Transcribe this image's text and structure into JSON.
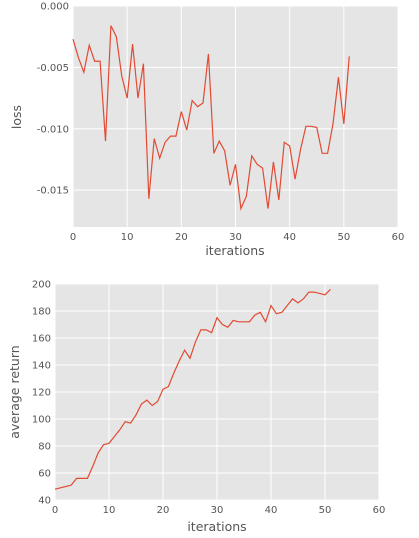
{
  "chart_data": [
    {
      "type": "line",
      "title": "",
      "xlabel": "iterations",
      "ylabel": "loss",
      "xlim": [
        0,
        60
      ],
      "ylim": [
        -0.018,
        0.0
      ],
      "xticks": [
        0,
        10,
        20,
        30,
        40,
        50,
        60
      ],
      "xtick_labels": [
        "0",
        "10",
        "20",
        "30",
        "40",
        "50",
        "60"
      ],
      "yticks": [
        0.0,
        -0.005,
        -0.01,
        -0.015
      ],
      "ytick_labels": [
        "0.000",
        "-0.005",
        "-0.010",
        "-0.015"
      ],
      "grid": true,
      "series": [
        {
          "color": "#e24a33",
          "x": [
            0,
            1,
            2,
            3,
            4,
            5,
            6,
            7,
            8,
            9,
            10,
            11,
            12,
            13,
            14,
            15,
            16,
            17,
            18,
            19,
            20,
            21,
            22,
            23,
            24,
            25,
            26,
            27,
            28,
            29,
            30,
            31,
            32,
            33,
            34,
            35,
            36,
            37,
            38,
            39,
            40,
            41,
            42,
            43,
            44,
            45,
            46,
            47,
            48,
            49,
            50,
            51
          ],
          "y": [
            -0.0027,
            -0.0042,
            -0.0054,
            -0.0032,
            -0.0045,
            -0.0045,
            -0.011,
            -0.0016,
            -0.0025,
            -0.0057,
            -0.0075,
            -0.0031,
            -0.0075,
            -0.0047,
            -0.0157,
            -0.0108,
            -0.0124,
            -0.0111,
            -0.0106,
            -0.0106,
            -0.0086,
            -0.0101,
            -0.0077,
            -0.0082,
            -0.0079,
            -0.0039,
            -0.012,
            -0.011,
            -0.0118,
            -0.0146,
            -0.0129,
            -0.0165,
            -0.0155,
            -0.0122,
            -0.0129,
            -0.0132,
            -0.0165,
            -0.0127,
            -0.0158,
            -0.0111,
            -0.0114,
            -0.0141,
            -0.0117,
            -0.0098,
            -0.0098,
            -0.0099,
            -0.012,
            -0.012,
            -0.0096,
            -0.0058,
            -0.0096,
            -0.0041
          ]
        }
      ]
    },
    {
      "type": "line",
      "title": "",
      "xlabel": "iterations",
      "ylabel": "average return",
      "xlim": [
        0,
        60
      ],
      "ylim": [
        40,
        200
      ],
      "xticks": [
        0,
        10,
        20,
        30,
        40,
        50,
        60
      ],
      "xtick_labels": [
        "0",
        "10",
        "20",
        "30",
        "40",
        "50",
        "60"
      ],
      "yticks": [
        40,
        60,
        80,
        100,
        120,
        140,
        160,
        180,
        200
      ],
      "ytick_labels": [
        "40",
        "60",
        "80",
        "100",
        "120",
        "140",
        "160",
        "180",
        "200"
      ],
      "grid": true,
      "series": [
        {
          "color": "#e24a33",
          "x": [
            0,
            1,
            2,
            3,
            4,
            5,
            6,
            7,
            8,
            9,
            10,
            11,
            12,
            13,
            14,
            15,
            16,
            17,
            18,
            19,
            20,
            21,
            22,
            23,
            24,
            25,
            26,
            27,
            28,
            29,
            30,
            31,
            32,
            33,
            34,
            35,
            36,
            37,
            38,
            39,
            40,
            41,
            42,
            43,
            44,
            45,
            46,
            47,
            48,
            49,
            50,
            51
          ],
          "y": [
            48,
            49,
            50,
            51,
            56,
            56,
            56,
            65,
            75,
            81,
            82,
            87,
            92,
            98,
            97,
            103,
            111,
            114,
            110,
            113,
            122,
            124,
            134,
            143,
            151,
            145,
            157,
            166,
            166,
            164,
            175,
            170,
            168,
            173,
            172,
            172,
            172,
            177,
            179,
            172,
            184,
            178,
            179,
            184,
            189,
            186,
            189,
            194,
            194,
            193,
            192,
            196
          ]
        }
      ]
    }
  ]
}
